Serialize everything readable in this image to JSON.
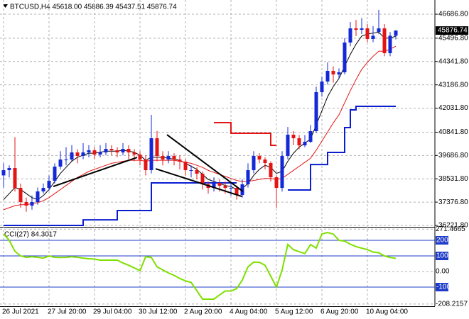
{
  "chart_data": [
    {
      "type": "candlestick",
      "title": "BTCUSD,H4  45618.00 45886.39 45437.51 45876.74",
      "categories": [
        "26 Jul 2021",
        null,
        null,
        null,
        null,
        null,
        null,
        null,
        "27 Jul 20:00",
        null,
        null,
        null,
        null,
        null,
        null,
        null,
        "29 Jul 04:00",
        null,
        null,
        null,
        null,
        null,
        null,
        null,
        "30 Jul 12:00",
        null,
        null,
        null,
        null,
        null,
        null,
        null,
        "2 Aug 20:00",
        null,
        null,
        null,
        null,
        null,
        null,
        null,
        "4 Aug 04:00",
        null,
        null,
        null,
        null,
        null,
        null,
        null,
        "5 Aug 12:00",
        null,
        null,
        null,
        null,
        null,
        null,
        null,
        "6 Aug 20:00",
        null,
        null,
        null,
        null,
        null,
        null,
        null,
        "10 Aug 04:00",
        null,
        null,
        null,
        null,
        null
      ],
      "open": [
        38700,
        38960,
        39066,
        38082,
        37380,
        37204,
        37380,
        37906,
        38082,
        38433,
        39136,
        39487,
        39487,
        39838,
        39663,
        39838,
        39944,
        39733,
        39838,
        40014,
        39944,
        39838,
        40014,
        39838,
        39733,
        39487,
        38960,
        40541,
        39663,
        39487,
        39663,
        39487,
        39382,
        38960,
        38960,
        38785,
        38258,
        38082,
        38328,
        38187,
        38082,
        38082,
        37731,
        38258,
        38960,
        39663,
        39487,
        39312,
        38609,
        38082,
        39663,
        40716,
        40541,
        40190,
        40365,
        40892,
        42824,
        43350,
        43877,
        43702,
        43807,
        45282,
        45984,
        45914,
        45984,
        45458,
        45809,
        45984,
        44755,
        45618
      ],
      "high": [
        39300,
        39200,
        40600,
        38300,
        37600,
        37700,
        38100,
        38300,
        38700,
        39300,
        39900,
        40100,
        40200,
        40000,
        40300,
        40200,
        40100,
        40200,
        40300,
        40200,
        40100,
        40300,
        40200,
        40000,
        39900,
        39700,
        41700,
        40900,
        39900,
        39900,
        39800,
        39700,
        39500,
        39200,
        39100,
        38900,
        38400,
        38600,
        38500,
        38400,
        38300,
        38200,
        38500,
        39300,
        39900,
        39800,
        39600,
        39400,
        38700,
        39900,
        41100,
        40900,
        40700,
        40700,
        41200,
        43100,
        43600,
        44300,
        44100,
        44000,
        45500,
        46300,
        46400,
        46500,
        46200,
        46100,
        46900,
        46200,
        45800,
        45886.39
      ],
      "low": [
        38100,
        38600,
        37900,
        37100,
        36900,
        37000,
        37250,
        37800,
        37950,
        38300,
        39000,
        39200,
        39400,
        39300,
        39500,
        39600,
        39500,
        39600,
        39700,
        39700,
        39600,
        39700,
        39500,
        39400,
        39200,
        38700,
        38800,
        39400,
        39200,
        39300,
        39200,
        39000,
        38700,
        38600,
        38500,
        38000,
        37800,
        37900,
        37900,
        37800,
        37700,
        37500,
        37600,
        38100,
        38800,
        39300,
        39000,
        38400,
        37100,
        37900,
        39500,
        40200,
        40000,
        40100,
        40300,
        40800,
        42600,
        43200,
        43300,
        43500,
        43700,
        45100,
        45600,
        45700,
        45300,
        45300,
        45700,
        44600,
        44600,
        45437.51
      ],
      "close": [
        38960,
        39066,
        38082,
        37380,
        37204,
        37380,
        37906,
        38082,
        38433,
        39136,
        39487,
        39487,
        39838,
        39663,
        39838,
        39944,
        39733,
        39838,
        40014,
        39944,
        39838,
        40014,
        39838,
        39733,
        39487,
        38960,
        40541,
        39663,
        39487,
        39663,
        39487,
        39382,
        38960,
        38960,
        38785,
        38258,
        38082,
        38328,
        38187,
        38082,
        38082,
        37731,
        38258,
        38960,
        39663,
        39487,
        39312,
        38609,
        38082,
        39663,
        40716,
        40541,
        40190,
        40365,
        40892,
        42824,
        43350,
        43877,
        43702,
        43807,
        45282,
        45984,
        45914,
        45984,
        45458,
        45618,
        45984,
        44755,
        45618,
        45876.74
      ],
      "up_color": "#1428d8",
      "down_color": "#e41414",
      "overlays": [
        {
          "color": "#000000",
          "values": [
            37500,
            37800,
            38100,
            38000,
            37800,
            37600,
            37500,
            37700,
            38000,
            38400,
            38800,
            39100,
            39400,
            39600,
            39700,
            39800,
            39800,
            39850,
            39900,
            39900,
            39900,
            39950,
            39900,
            39850,
            39700,
            39450,
            39600,
            39600,
            39600,
            39550,
            39500,
            39450,
            39300,
            39150,
            39000,
            38750,
            38500,
            38400,
            38300,
            38200,
            38150,
            38000,
            38050,
            38300,
            38700,
            39000,
            39200,
            39100,
            38800,
            38900,
            39400,
            39800,
            40100,
            40300,
            40500,
            41200,
            41900,
            42600,
            43100,
            43500,
            44100,
            44700,
            45200,
            45600,
            45700,
            45750,
            45800,
            45500,
            45500,
            45600
          ]
        },
        {
          "color": "#e41414",
          "values": [
            37000,
            37100,
            37200,
            37250,
            37250,
            37300,
            37350,
            37450,
            37600,
            37800,
            38000,
            38200,
            38400,
            38600,
            38750,
            38900,
            39000,
            39100,
            39200,
            39300,
            39350,
            39400,
            39450,
            39450,
            39450,
            39400,
            39450,
            39450,
            39450,
            39450,
            39450,
            39400,
            39350,
            39300,
            39200,
            39100,
            38950,
            38850,
            38750,
            38650,
            38550,
            38450,
            38400,
            38400,
            38450,
            38500,
            38550,
            38550,
            38500,
            38550,
            38750,
            38950,
            39150,
            39350,
            39550,
            39950,
            40400,
            40850,
            41300,
            41700,
            42300,
            42900,
            43450,
            43950,
            44300,
            44600,
            44850,
            44850,
            44950,
            45100
          ]
        },
        {
          "color": "#0a1ed0",
          "step": true,
          "values": [
            36222,
            36222,
            36222,
            36222,
            36222,
            36222,
            36222,
            36222,
            36222,
            36222,
            36222,
            36222,
            36222,
            36222,
            36500,
            36500,
            36500,
            36500,
            36500,
            36500,
            36960,
            36960,
            36960,
            36960,
            36960,
            36960,
            38328,
            38328,
            38328,
            38328,
            38328,
            38328,
            38328,
            38328,
            38328,
            38328,
            38328,
            38328,
            38328,
            38328,
            38328,
            38328,
            null,
            null,
            null,
            null,
            null,
            null,
            null,
            null,
            37976,
            37976,
            37976,
            37976,
            39240,
            39240,
            39240,
            39838,
            39838,
            39838,
            41070,
            41945,
            42120,
            42120,
            42120,
            42120,
            42120,
            42120,
            42120,
            42120
          ]
        },
        {
          "color": "#e41414",
          "step": true,
          "values": [
            null,
            null,
            null,
            null,
            null,
            null,
            null,
            null,
            null,
            null,
            null,
            null,
            null,
            null,
            null,
            null,
            null,
            null,
            null,
            null,
            null,
            null,
            null,
            null,
            null,
            null,
            null,
            null,
            null,
            null,
            null,
            null,
            null,
            null,
            null,
            null,
            null,
            41313,
            41313,
            41313,
            40787,
            40787,
            40787,
            40787,
            40787,
            40787,
            40787,
            40190,
            40190,
            null,
            null,
            null,
            null,
            null,
            null,
            null,
            null,
            null,
            null,
            null,
            null,
            null,
            null,
            null,
            null,
            null,
            null,
            null,
            null,
            null
          ]
        }
      ],
      "trendlines": [
        {
          "x": [
            8.75,
            23.5
          ],
          "y": [
            38153,
            39592
          ]
        },
        {
          "x": [
            28.75,
            42.1
          ],
          "y": [
            40716,
            37907
          ]
        },
        {
          "x": [
            26.75,
            41.9
          ],
          "y": [
            39030,
            37661
          ]
        }
      ],
      "ylim": [
        36152,
        47284
      ],
      "yticks": [
        {
          "value": 46686.8,
          "label": "46686.80"
        },
        {
          "value": 45496.8,
          "label": "45496.80"
        },
        {
          "value": 44341.8,
          "label": "44341.80"
        },
        {
          "value": 43186.8,
          "label": "43186.80"
        },
        {
          "value": 42031.8,
          "label": "42031.80"
        },
        {
          "value": 40841.8,
          "label": "40841.80"
        },
        {
          "value": 39686.8,
          "label": "39686.80"
        },
        {
          "value": 38531.8,
          "label": "38531.80"
        },
        {
          "value": 37376.8,
          "label": "37376.80"
        },
        {
          "value": 36221.8,
          "label": "36221.80"
        }
      ],
      "grid": true
    },
    {
      "type": "line",
      "title": "CCI(27) 84.3017",
      "series": [
        {
          "color": "#7ee000",
          "values": [
            241,
            200,
            130,
            100,
            91,
            95,
            91,
            86,
            100,
            91,
            90,
            91,
            95,
            91,
            86,
            82,
            80,
            73,
            73,
            73,
            73,
            55,
            40,
            23,
            5,
            95,
            90,
            30,
            10,
            -9,
            -25,
            -45,
            -60,
            -70,
            -123,
            -177,
            -177,
            -177,
            -150,
            -125,
            -125,
            -110,
            -55,
            30,
            60,
            59,
            40,
            -30,
            -100,
            10,
            173,
            140,
            127,
            115,
            173,
            150,
            241,
            250,
            240,
            200,
            195,
            175,
            160,
            150,
            140,
            125,
            120,
            100,
            90,
            84.3017
          ]
        }
      ],
      "levels": [
        200,
        100,
        -100
      ],
      "level_color": "#1e3cc8",
      "ylim": [
        -222.7,
        277.3
      ],
      "yticks": [
        271.4665,
        200,
        100,
        {
          "value": 0,
          "label": "0.00"
        },
        -100,
        -208.2157
      ],
      "grid": true
    }
  ]
}
